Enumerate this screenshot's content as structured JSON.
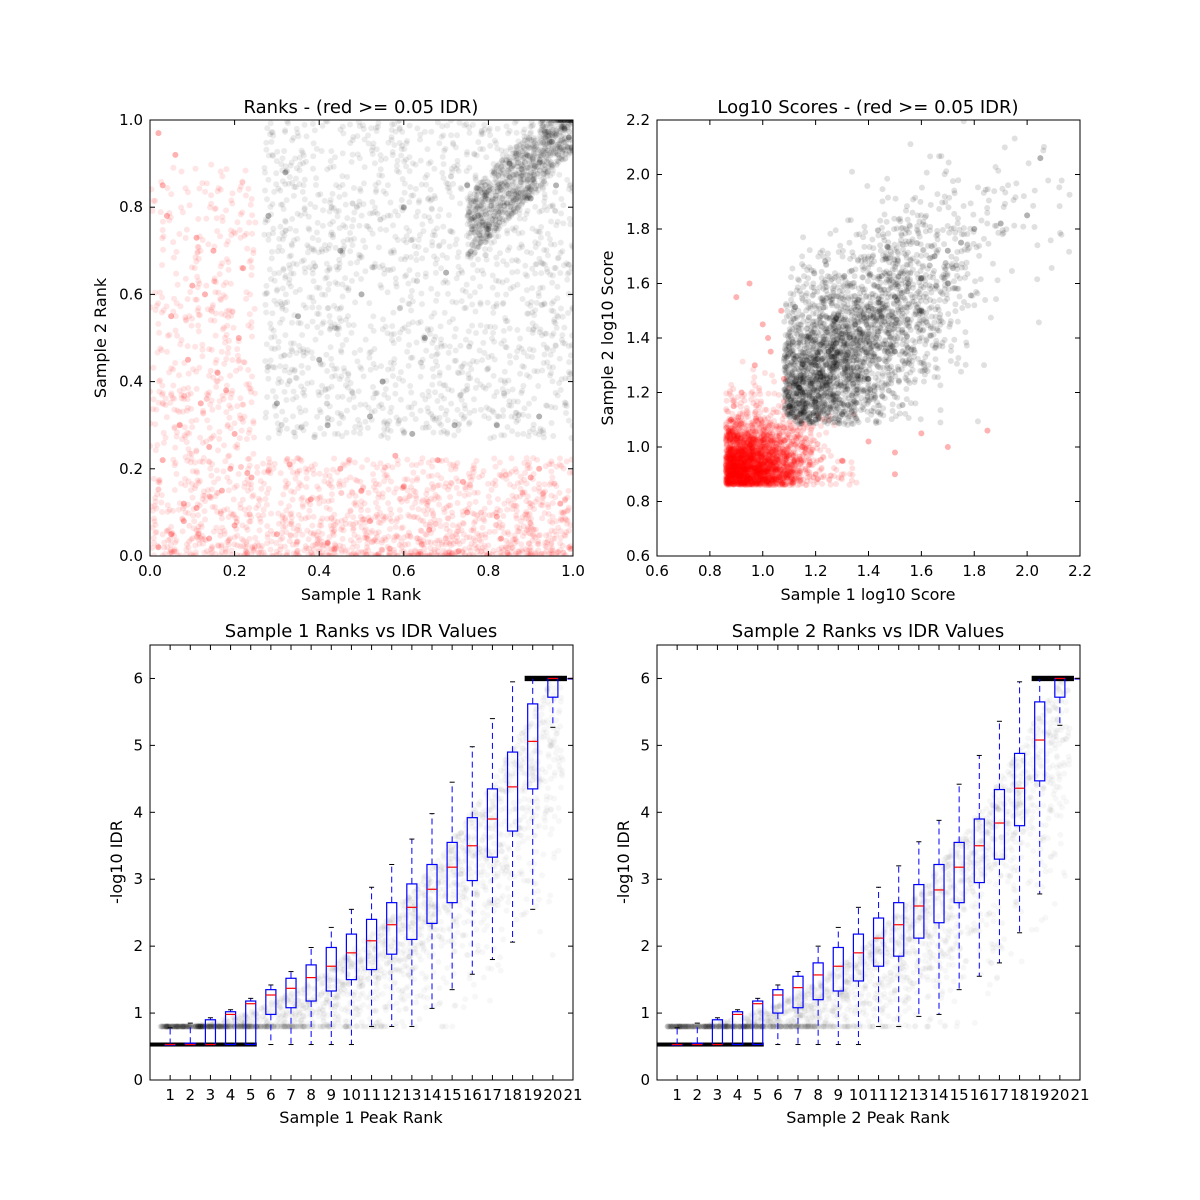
{
  "chart_data": [
    {
      "type": "scatter",
      "title": "Ranks - (red >= 0.05 IDR)",
      "xlabel": "Sample 1 Rank",
      "ylabel": "Sample 2 Rank",
      "xlim": [
        0.0,
        1.0
      ],
      "ylim": [
        0.0,
        1.0
      ],
      "xticks": [
        "0.0",
        "0.2",
        "0.4",
        "0.6",
        "0.8",
        "1.0"
      ],
      "yticks": [
        "0.0",
        "0.2",
        "0.4",
        "0.6",
        "0.8",
        "1.0"
      ],
      "grid": false,
      "colors": {
        "pass": "#000000",
        "fail": "#ff0000"
      },
      "series": [
        {
          "color": "fail",
          "region": {
            "x": [
              0.0,
              1.0
            ],
            "y": [
              0.0,
              0.25
            ],
            "corner": [
              0.25,
              0.25
            ]
          },
          "x": [
            0.02,
            0.05,
            0.08,
            0.11,
            0.14,
            0.17,
            0.2,
            0.23,
            0.03,
            0.07,
            0.12,
            0.16,
            0.21,
            0.05,
            0.1,
            0.15,
            0.2,
            0.04,
            0.09,
            0.13,
            0.18,
            0.22,
            0.03,
            0.06,
            0.11,
            0.19,
            0.02,
            0.08,
            0.14,
            0.24,
            0.3,
            0.38,
            0.45,
            0.52,
            0.6,
            0.68,
            0.75,
            0.83,
            0.9,
            0.97,
            0.33,
            0.42,
            0.5,
            0.58,
            0.66,
            0.74,
            0.82,
            0.92
          ],
          "y": [
            0.02,
            0.05,
            0.08,
            0.11,
            0.04,
            0.15,
            0.07,
            0.19,
            0.22,
            0.3,
            0.35,
            0.42,
            0.5,
            0.55,
            0.62,
            0.7,
            0.28,
            0.78,
            0.45,
            0.6,
            0.38,
            0.66,
            0.85,
            0.92,
            0.73,
            0.2,
            0.97,
            0.12,
            0.25,
            0.18,
            0.05,
            0.13,
            0.2,
            0.08,
            0.16,
            0.22,
            0.1,
            0.04,
            0.18,
            0.12,
            0.21,
            0.03,
            0.15,
            0.23,
            0.06,
            0.17,
            0.09,
            0.2
          ]
        },
        {
          "color": "pass",
          "region": {
            "x": [
              0.25,
              1.0
            ],
            "y": [
              0.25,
              1.0
            ]
          },
          "x": [
            0.3,
            0.35,
            0.4,
            0.45,
            0.5,
            0.55,
            0.6,
            0.65,
            0.7,
            0.75,
            0.8,
            0.85,
            0.9,
            0.95,
            0.98,
            0.28,
            0.32,
            0.42,
            0.52,
            0.62,
            0.72,
            0.82,
            0.92,
            0.96,
            0.99,
            1.0
          ],
          "y": [
            0.35,
            0.55,
            0.45,
            0.7,
            0.6,
            0.4,
            0.8,
            0.5,
            0.65,
            0.85,
            0.75,
            0.9,
            0.82,
            0.95,
            0.98,
            0.78,
            0.88,
            0.3,
            0.32,
            0.28,
            0.3,
            0.3,
            0.32,
            0.85,
            0.96,
            1.0
          ]
        }
      ]
    },
    {
      "type": "scatter",
      "title": "Log10 Scores - (red >= 0.05 IDR)",
      "xlabel": "Sample 1 log10 Score",
      "ylabel": "Sample 2 log10 Score",
      "xlim": [
        0.6,
        2.2
      ],
      "ylim": [
        0.6,
        2.2
      ],
      "xticks": [
        "0.6",
        "0.8",
        "1.0",
        "1.2",
        "1.4",
        "1.6",
        "1.8",
        "2.0",
        "2.2"
      ],
      "yticks": [
        "0.6",
        "0.8",
        "1.0",
        "1.2",
        "1.4",
        "1.6",
        "1.8",
        "2.0",
        "2.2"
      ],
      "grid": false,
      "colors": {
        "pass": "#000000",
        "fail": "#ff0000"
      },
      "series": [
        {
          "color": "fail",
          "x": [
            0.87,
            0.9,
            0.95,
            1.0,
            1.05,
            1.1,
            1.15,
            1.2,
            1.3,
            1.4,
            1.5,
            1.6,
            0.88,
            0.92,
            0.97,
            1.02,
            1.07,
            0.9,
            0.95,
            1.0,
            1.03,
            1.08,
            0.89,
            1.5,
            1.7,
            1.85
          ],
          "y": [
            0.87,
            0.9,
            0.95,
            0.88,
            0.92,
            0.97,
            1.0,
            0.9,
            0.95,
            1.02,
            0.98,
            1.05,
            1.1,
            1.2,
            1.3,
            1.4,
            1.5,
            1.55,
            1.6,
            1.45,
            1.35,
            1.25,
            1.15,
            0.9,
            1.0,
            1.06
          ]
        },
        {
          "color": "pass",
          "x": [
            1.1,
            1.15,
            1.2,
            1.25,
            1.3,
            1.35,
            1.4,
            1.45,
            1.5,
            1.55,
            1.6,
            1.65,
            1.7,
            1.75,
            1.8,
            1.9,
            2.0,
            2.05,
            1.2,
            1.3,
            1.4,
            1.5,
            1.6,
            1.7
          ],
          "y": [
            1.15,
            1.2,
            1.3,
            1.35,
            1.4,
            1.45,
            1.5,
            1.48,
            1.55,
            1.6,
            1.62,
            1.7,
            1.72,
            1.75,
            1.8,
            1.82,
            1.85,
            2.06,
            1.1,
            1.12,
            1.25,
            1.35,
            1.5,
            1.6
          ]
        }
      ]
    },
    {
      "type": "box",
      "title": "Sample 1 Ranks vs IDR Values",
      "xlabel": "Sample 1 Peak Rank",
      "ylabel": "-log10 IDR",
      "xlim": [
        0,
        21
      ],
      "ylim": [
        0,
        6.5
      ],
      "categories": [
        "1",
        "2",
        "3",
        "4",
        "5",
        "6",
        "7",
        "8",
        "9",
        "10",
        "11",
        "12",
        "13",
        "14",
        "15",
        "16",
        "17",
        "18",
        "19",
        "20",
        "21"
      ],
      "yticks": [
        "0",
        "1",
        "2",
        "3",
        "4",
        "5",
        "6"
      ],
      "colors": {
        "box": "#0000ff",
        "median": "#ff0000",
        "cloud": "#000000"
      },
      "boxes": [
        {
          "low": 0.53,
          "q1": 0.53,
          "median": 0.53,
          "q3": 0.53,
          "high": 0.78
        },
        {
          "low": 0.53,
          "q1": 0.53,
          "median": 0.53,
          "q3": 0.55,
          "high": 0.85
        },
        {
          "low": 0.53,
          "q1": 0.53,
          "median": 0.53,
          "q3": 0.9,
          "high": 0.93
        },
        {
          "low": 0.53,
          "q1": 0.53,
          "median": 0.98,
          "q3": 1.02,
          "high": 1.05
        },
        {
          "low": 0.53,
          "q1": 0.53,
          "median": 1.14,
          "q3": 1.18,
          "high": 1.22
        },
        {
          "low": 0.53,
          "q1": 0.98,
          "median": 1.27,
          "q3": 1.35,
          "high": 1.42
        },
        {
          "low": 0.53,
          "q1": 1.08,
          "median": 1.37,
          "q3": 1.52,
          "high": 1.62
        },
        {
          "low": 0.53,
          "q1": 1.18,
          "median": 1.53,
          "q3": 1.72,
          "high": 1.98
        },
        {
          "low": 0.53,
          "q1": 1.33,
          "median": 1.7,
          "q3": 1.98,
          "high": 2.28
        },
        {
          "low": 0.53,
          "q1": 1.5,
          "median": 1.9,
          "q3": 2.18,
          "high": 2.55
        },
        {
          "low": 0.8,
          "q1": 1.65,
          "median": 2.08,
          "q3": 2.4,
          "high": 2.88
        },
        {
          "low": 0.8,
          "q1": 1.88,
          "median": 2.32,
          "q3": 2.65,
          "high": 3.22
        },
        {
          "low": 0.8,
          "q1": 2.1,
          "median": 2.58,
          "q3": 2.93,
          "high": 3.6
        },
        {
          "low": 1.07,
          "q1": 2.34,
          "median": 2.85,
          "q3": 3.22,
          "high": 3.98
        },
        {
          "low": 1.35,
          "q1": 2.65,
          "median": 3.18,
          "q3": 3.55,
          "high": 4.45
        },
        {
          "low": 1.58,
          "q1": 2.98,
          "median": 3.5,
          "q3": 3.92,
          "high": 4.98
        },
        {
          "low": 1.8,
          "q1": 3.33,
          "median": 3.9,
          "q3": 4.35,
          "high": 5.4
        },
        {
          "low": 2.06,
          "q1": 3.72,
          "median": 4.38,
          "q3": 4.9,
          "high": 5.95
        },
        {
          "low": 2.55,
          "q1": 4.35,
          "median": 5.06,
          "q3": 5.62,
          "high": 6.0
        },
        {
          "low": 5.27,
          "q1": 5.72,
          "median": 6.0,
          "q3": 6.0,
          "high": 6.0
        },
        {
          "low": 6.0,
          "q1": 6.0,
          "median": 6.0,
          "q3": 6.0,
          "high": 6.0
        }
      ]
    },
    {
      "type": "box",
      "title": "Sample 2 Ranks vs IDR Values",
      "xlabel": "Sample 2 Peak Rank",
      "ylabel": "-log10 IDR",
      "xlim": [
        0,
        21
      ],
      "ylim": [
        0,
        6.5
      ],
      "categories": [
        "1",
        "2",
        "3",
        "4",
        "5",
        "6",
        "7",
        "8",
        "9",
        "10",
        "11",
        "12",
        "13",
        "14",
        "15",
        "16",
        "17",
        "18",
        "19",
        "20",
        "21"
      ],
      "yticks": [
        "0",
        "1",
        "2",
        "3",
        "4",
        "5",
        "6"
      ],
      "colors": {
        "box": "#0000ff",
        "median": "#ff0000",
        "cloud": "#000000"
      },
      "boxes": [
        {
          "low": 0.53,
          "q1": 0.53,
          "median": 0.53,
          "q3": 0.53,
          "high": 0.78
        },
        {
          "low": 0.53,
          "q1": 0.53,
          "median": 0.53,
          "q3": 0.55,
          "high": 0.85
        },
        {
          "low": 0.53,
          "q1": 0.53,
          "median": 0.53,
          "q3": 0.9,
          "high": 0.93
        },
        {
          "low": 0.53,
          "q1": 0.53,
          "median": 0.98,
          "q3": 1.02,
          "high": 1.05
        },
        {
          "low": 0.53,
          "q1": 0.53,
          "median": 1.14,
          "q3": 1.18,
          "high": 1.22
        },
        {
          "low": 0.53,
          "q1": 1.0,
          "median": 1.27,
          "q3": 1.35,
          "high": 1.42
        },
        {
          "low": 0.53,
          "q1": 1.08,
          "median": 1.38,
          "q3": 1.55,
          "high": 1.62
        },
        {
          "low": 0.53,
          "q1": 1.2,
          "median": 1.57,
          "q3": 1.75,
          "high": 2.0
        },
        {
          "low": 0.53,
          "q1": 1.33,
          "median": 1.7,
          "q3": 1.98,
          "high": 2.28
        },
        {
          "low": 0.53,
          "q1": 1.48,
          "median": 1.9,
          "q3": 2.18,
          "high": 2.58
        },
        {
          "low": 0.8,
          "q1": 1.7,
          "median": 2.12,
          "q3": 2.42,
          "high": 2.88
        },
        {
          "low": 0.8,
          "q1": 1.85,
          "median": 2.32,
          "q3": 2.65,
          "high": 3.2
        },
        {
          "low": 0.95,
          "q1": 2.12,
          "median": 2.6,
          "q3": 2.92,
          "high": 3.56
        },
        {
          "low": 0.98,
          "q1": 2.35,
          "median": 2.84,
          "q3": 3.22,
          "high": 3.88
        },
        {
          "low": 1.35,
          "q1": 2.65,
          "median": 3.18,
          "q3": 3.55,
          "high": 4.42
        },
        {
          "low": 1.55,
          "q1": 2.95,
          "median": 3.5,
          "q3": 3.9,
          "high": 4.85
        },
        {
          "low": 1.75,
          "q1": 3.3,
          "median": 3.84,
          "q3": 4.34,
          "high": 5.36
        },
        {
          "low": 2.2,
          "q1": 3.8,
          "median": 4.36,
          "q3": 4.88,
          "high": 5.95
        },
        {
          "low": 2.78,
          "q1": 4.47,
          "median": 5.08,
          "q3": 5.65,
          "high": 6.0
        },
        {
          "low": 5.3,
          "q1": 5.72,
          "median": 6.0,
          "q3": 6.0,
          "high": 6.0
        },
        {
          "low": 6.0,
          "q1": 6.0,
          "median": 6.0,
          "q3": 6.0,
          "high": 6.0
        }
      ]
    }
  ]
}
